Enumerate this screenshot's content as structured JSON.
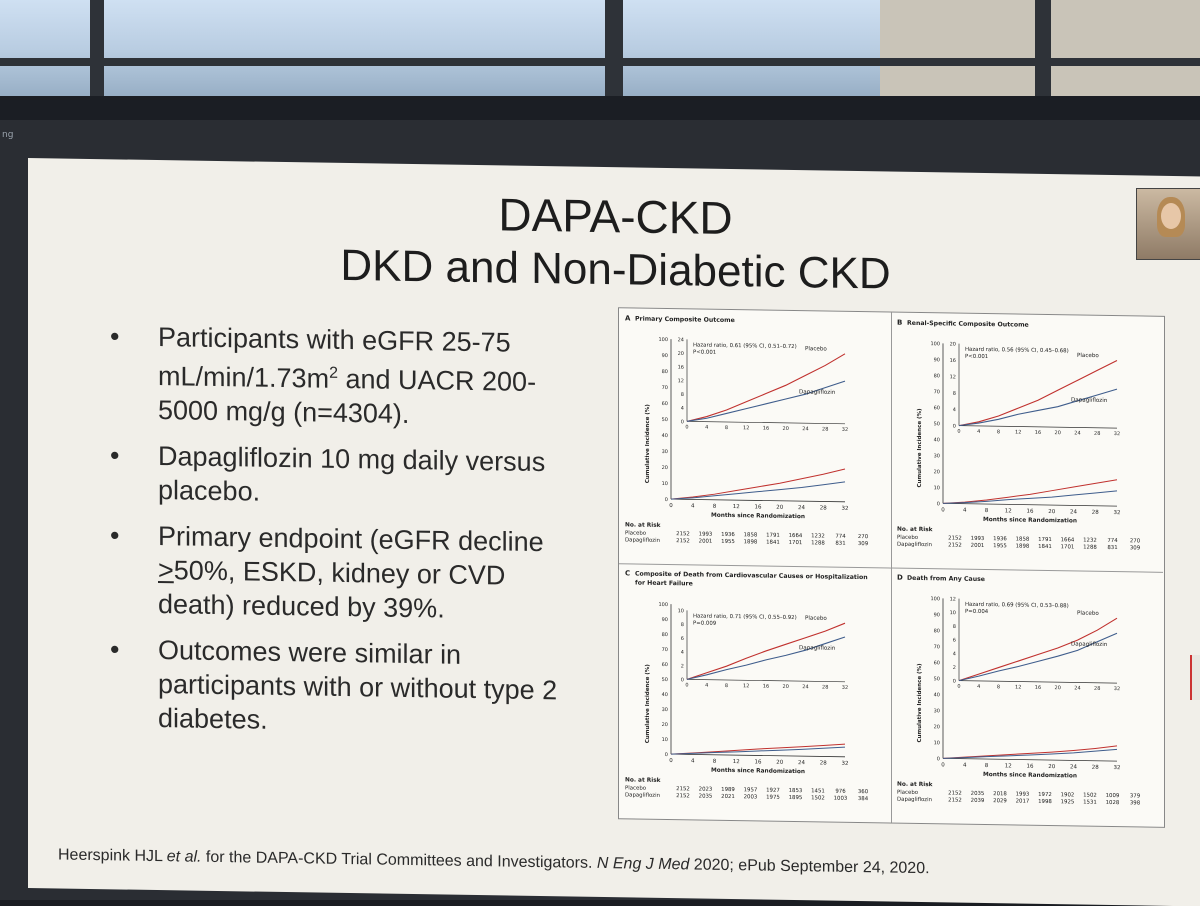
{
  "slide": {
    "title_line1": "DAPA-CKD",
    "title_line2": "DKD and Non-Diabetic CKD",
    "bullets": [
      {
        "pre": "Participants with eGFR 25-75 mL/min/1.73m",
        "sup": "2",
        "post": " and UACR 200-5000 mg/g (n=4304)."
      },
      {
        "text": "Dapagliflozin 10 mg daily versus placebo."
      },
      {
        "pre": "Primary endpoint (eGFR decline ",
        "under": ">",
        "post": "50%, ESKD, kidney or CVD death) reduced by 39%."
      },
      {
        "text": "Outcomes were similar in participants with or without type 2 diabetes."
      }
    ],
    "bullet_symbol": "•",
    "citation_pre": "Heerspink HJL ",
    "citation_etal": "et al.",
    "citation_mid": " for the DAPA-CKD Trial Committees and Investigators. ",
    "citation_journal": "N Eng J Med",
    "citation_post": " 2020; ePub September 24, 2020."
  },
  "side_text": "ng",
  "colors": {
    "placebo": "#c0312e",
    "dapagliflozin": "#3f5d8c"
  },
  "chart_data": [
    {
      "type": "line",
      "panel": "A",
      "title": "Primary Composite Outcome",
      "hr_text": "Hazard ratio, 0.61 (95% CI, 0.51–0.72)",
      "p_text": "P<0.001",
      "ylabel": "Cumulative Incidence (%)",
      "xlabel": "Months since Randomization",
      "x": [
        0,
        4,
        8,
        12,
        16,
        20,
        24,
        28,
        32
      ],
      "ylim_inset": [
        0,
        24
      ],
      "yticks_inset": [
        0,
        4,
        8,
        12,
        16,
        20,
        24
      ],
      "yticks_main": [
        0,
        10,
        20,
        30,
        40,
        50,
        60,
        70,
        80,
        90,
        100
      ],
      "series": [
        {
          "name": "Placebo",
          "values": [
            0,
            1.5,
            3.5,
            6,
            8.5,
            11,
            14,
            17,
            20.5
          ]
        },
        {
          "name": "Dapagliflozin",
          "values": [
            0,
            1,
            2.5,
            4,
            5.5,
            7,
            8.5,
            10.5,
            12.5
          ]
        }
      ],
      "risk_label": "No. at Risk",
      "risk": [
        {
          "name": "Placebo",
          "values": [
            "2152",
            "1993",
            "1936",
            "1858",
            "1791",
            "1664",
            "1232",
            "774",
            "270"
          ]
        },
        {
          "name": "Dapagliflozin",
          "values": [
            "2152",
            "2001",
            "1955",
            "1898",
            "1841",
            "1701",
            "1288",
            "831",
            "309"
          ]
        }
      ]
    },
    {
      "type": "line",
      "panel": "B",
      "title": "Renal-Specific Composite Outcome",
      "hr_text": "Hazard ratio, 0.56 (95% CI, 0.45–0.68)",
      "p_text": "P<0.001",
      "ylabel": "Cumulative Incidence (%)",
      "xlabel": "Months since Randomization",
      "x": [
        0,
        4,
        8,
        12,
        16,
        20,
        24,
        28,
        32
      ],
      "ylim_inset": [
        0,
        20
      ],
      "yticks_inset": [
        0,
        4,
        8,
        12,
        16,
        20
      ],
      "yticks_main": [
        0,
        10,
        20,
        30,
        40,
        50,
        60,
        70,
        80,
        90,
        100
      ],
      "series": [
        {
          "name": "Placebo",
          "values": [
            0,
            1,
            2.5,
            4.5,
            6.5,
            9,
            11.5,
            14,
            16.5
          ]
        },
        {
          "name": "Dapagliflozin",
          "values": [
            0,
            0.7,
            1.7,
            3,
            4,
            5,
            6.5,
            8,
            9.5
          ]
        }
      ],
      "risk_label": "No. at Risk",
      "risk": [
        {
          "name": "Placebo",
          "values": [
            "2152",
            "1993",
            "1936",
            "1858",
            "1791",
            "1664",
            "1232",
            "774",
            "270"
          ]
        },
        {
          "name": "Dapagliflozin",
          "values": [
            "2152",
            "2001",
            "1955",
            "1898",
            "1841",
            "1701",
            "1288",
            "831",
            "309"
          ]
        }
      ]
    },
    {
      "type": "line",
      "panel": "C",
      "title": "Composite of Death from Cardiovascular Causes or Hospitalization for Heart Failure",
      "hr_text": "Hazard ratio, 0.71 (95% CI, 0.55–0.92)",
      "p_text": "P=0.009",
      "ylabel": "Cumulative Incidence (%)",
      "xlabel": "Months since Randomization",
      "x": [
        0,
        4,
        8,
        12,
        16,
        20,
        24,
        28,
        32
      ],
      "ylim_inset": [
        0,
        10
      ],
      "yticks_inset": [
        0,
        2,
        4,
        6,
        8,
        10
      ],
      "yticks_main": [
        0,
        10,
        20,
        30,
        40,
        50,
        60,
        70,
        80,
        90,
        100
      ],
      "series": [
        {
          "name": "Placebo",
          "values": [
            0,
            1,
            2,
            3.2,
            4.3,
            5.3,
            6.3,
            7.3,
            8.5
          ]
        },
        {
          "name": "Dapagliflozin",
          "values": [
            0,
            0.7,
            1.5,
            2.2,
            3,
            3.7,
            4.5,
            5.5,
            6.5
          ]
        }
      ],
      "risk_label": "No. at Risk",
      "risk": [
        {
          "name": "Placebo",
          "values": [
            "2152",
            "2023",
            "1989",
            "1957",
            "1927",
            "1853",
            "1451",
            "976",
            "360"
          ]
        },
        {
          "name": "Dapagliflozin",
          "values": [
            "2152",
            "2035",
            "2021",
            "2003",
            "1975",
            "1895",
            "1502",
            "1003",
            "384"
          ]
        }
      ]
    },
    {
      "type": "line",
      "panel": "D",
      "title": "Death from Any Cause",
      "hr_text": "Hazard ratio, 0.69 (95% CI, 0.53–0.88)",
      "p_text": "P=0.004",
      "ylabel": "Cumulative Incidence (%)",
      "xlabel": "Months since Randomization",
      "x": [
        0,
        4,
        8,
        12,
        16,
        20,
        24,
        28,
        32
      ],
      "ylim_inset": [
        0,
        12
      ],
      "yticks_inset": [
        0,
        2,
        4,
        6,
        8,
        10,
        12
      ],
      "yticks_main": [
        0,
        10,
        20,
        30,
        40,
        50,
        60,
        70,
        80,
        90,
        100
      ],
      "series": [
        {
          "name": "Placebo",
          "values": [
            0,
            1,
            2,
            3,
            4,
            5,
            6.2,
            7.7,
            9.5
          ]
        },
        {
          "name": "Dapagliflozin",
          "values": [
            0,
            0.7,
            1.5,
            2.2,
            3,
            3.8,
            4.7,
            6,
            7.3
          ]
        }
      ],
      "risk_label": "No. at Risk",
      "risk": [
        {
          "name": "Placebo",
          "values": [
            "2152",
            "2035",
            "2018",
            "1993",
            "1972",
            "1902",
            "1502",
            "1009",
            "379"
          ]
        },
        {
          "name": "Dapagliflozin",
          "values": [
            "2152",
            "2039",
            "2029",
            "2017",
            "1998",
            "1925",
            "1531",
            "1028",
            "398"
          ]
        }
      ]
    }
  ]
}
